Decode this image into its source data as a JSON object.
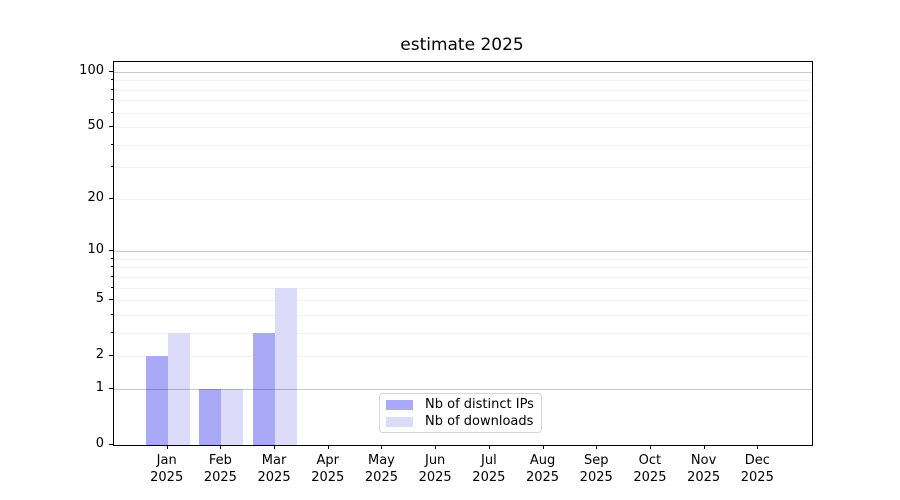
{
  "title": "estimate 2025",
  "chart_data": {
    "type": "bar",
    "title": "estimate 2025",
    "xlabel": "",
    "ylabel": "",
    "categories": [
      "Jan",
      "Feb",
      "Mar",
      "Apr",
      "May",
      "Jun",
      "Jul",
      "Aug",
      "Sep",
      "Oct",
      "Nov",
      "Dec"
    ],
    "year_label": "2025",
    "series": [
      {
        "name": "Nb of distinct IPs",
        "color": "#a9a9f8",
        "values": [
          2,
          1,
          3,
          0,
          0,
          0,
          0,
          0,
          0,
          0,
          0,
          0
        ]
      },
      {
        "name": "Nb of downloads",
        "color": "#dcdcf8",
        "values": [
          3,
          1,
          6,
          0,
          0,
          0,
          0,
          0,
          0,
          0,
          0,
          0
        ]
      }
    ],
    "yscale": "log1p",
    "ylim": [
      0,
      113
    ],
    "yticks": [
      0,
      1,
      2,
      5,
      10,
      20,
      50,
      100
    ],
    "y_minor_ticks": [
      3,
      4,
      6,
      7,
      8,
      9,
      30,
      40,
      60,
      70,
      80,
      90
    ],
    "major_gridlines": [
      1,
      10,
      100
    ],
    "minor_gridlines": [
      2,
      3,
      4,
      5,
      6,
      7,
      8,
      9,
      20,
      30,
      40,
      50,
      60,
      70,
      80,
      90
    ],
    "grid": true,
    "legend_position": "lower center",
    "colors": {
      "spine": "#000000",
      "grid_major": "#c6c6c6",
      "grid_minor": "#f1f1f1",
      "legend_border": "#d5d5d5",
      "background": "#ffffff"
    }
  }
}
